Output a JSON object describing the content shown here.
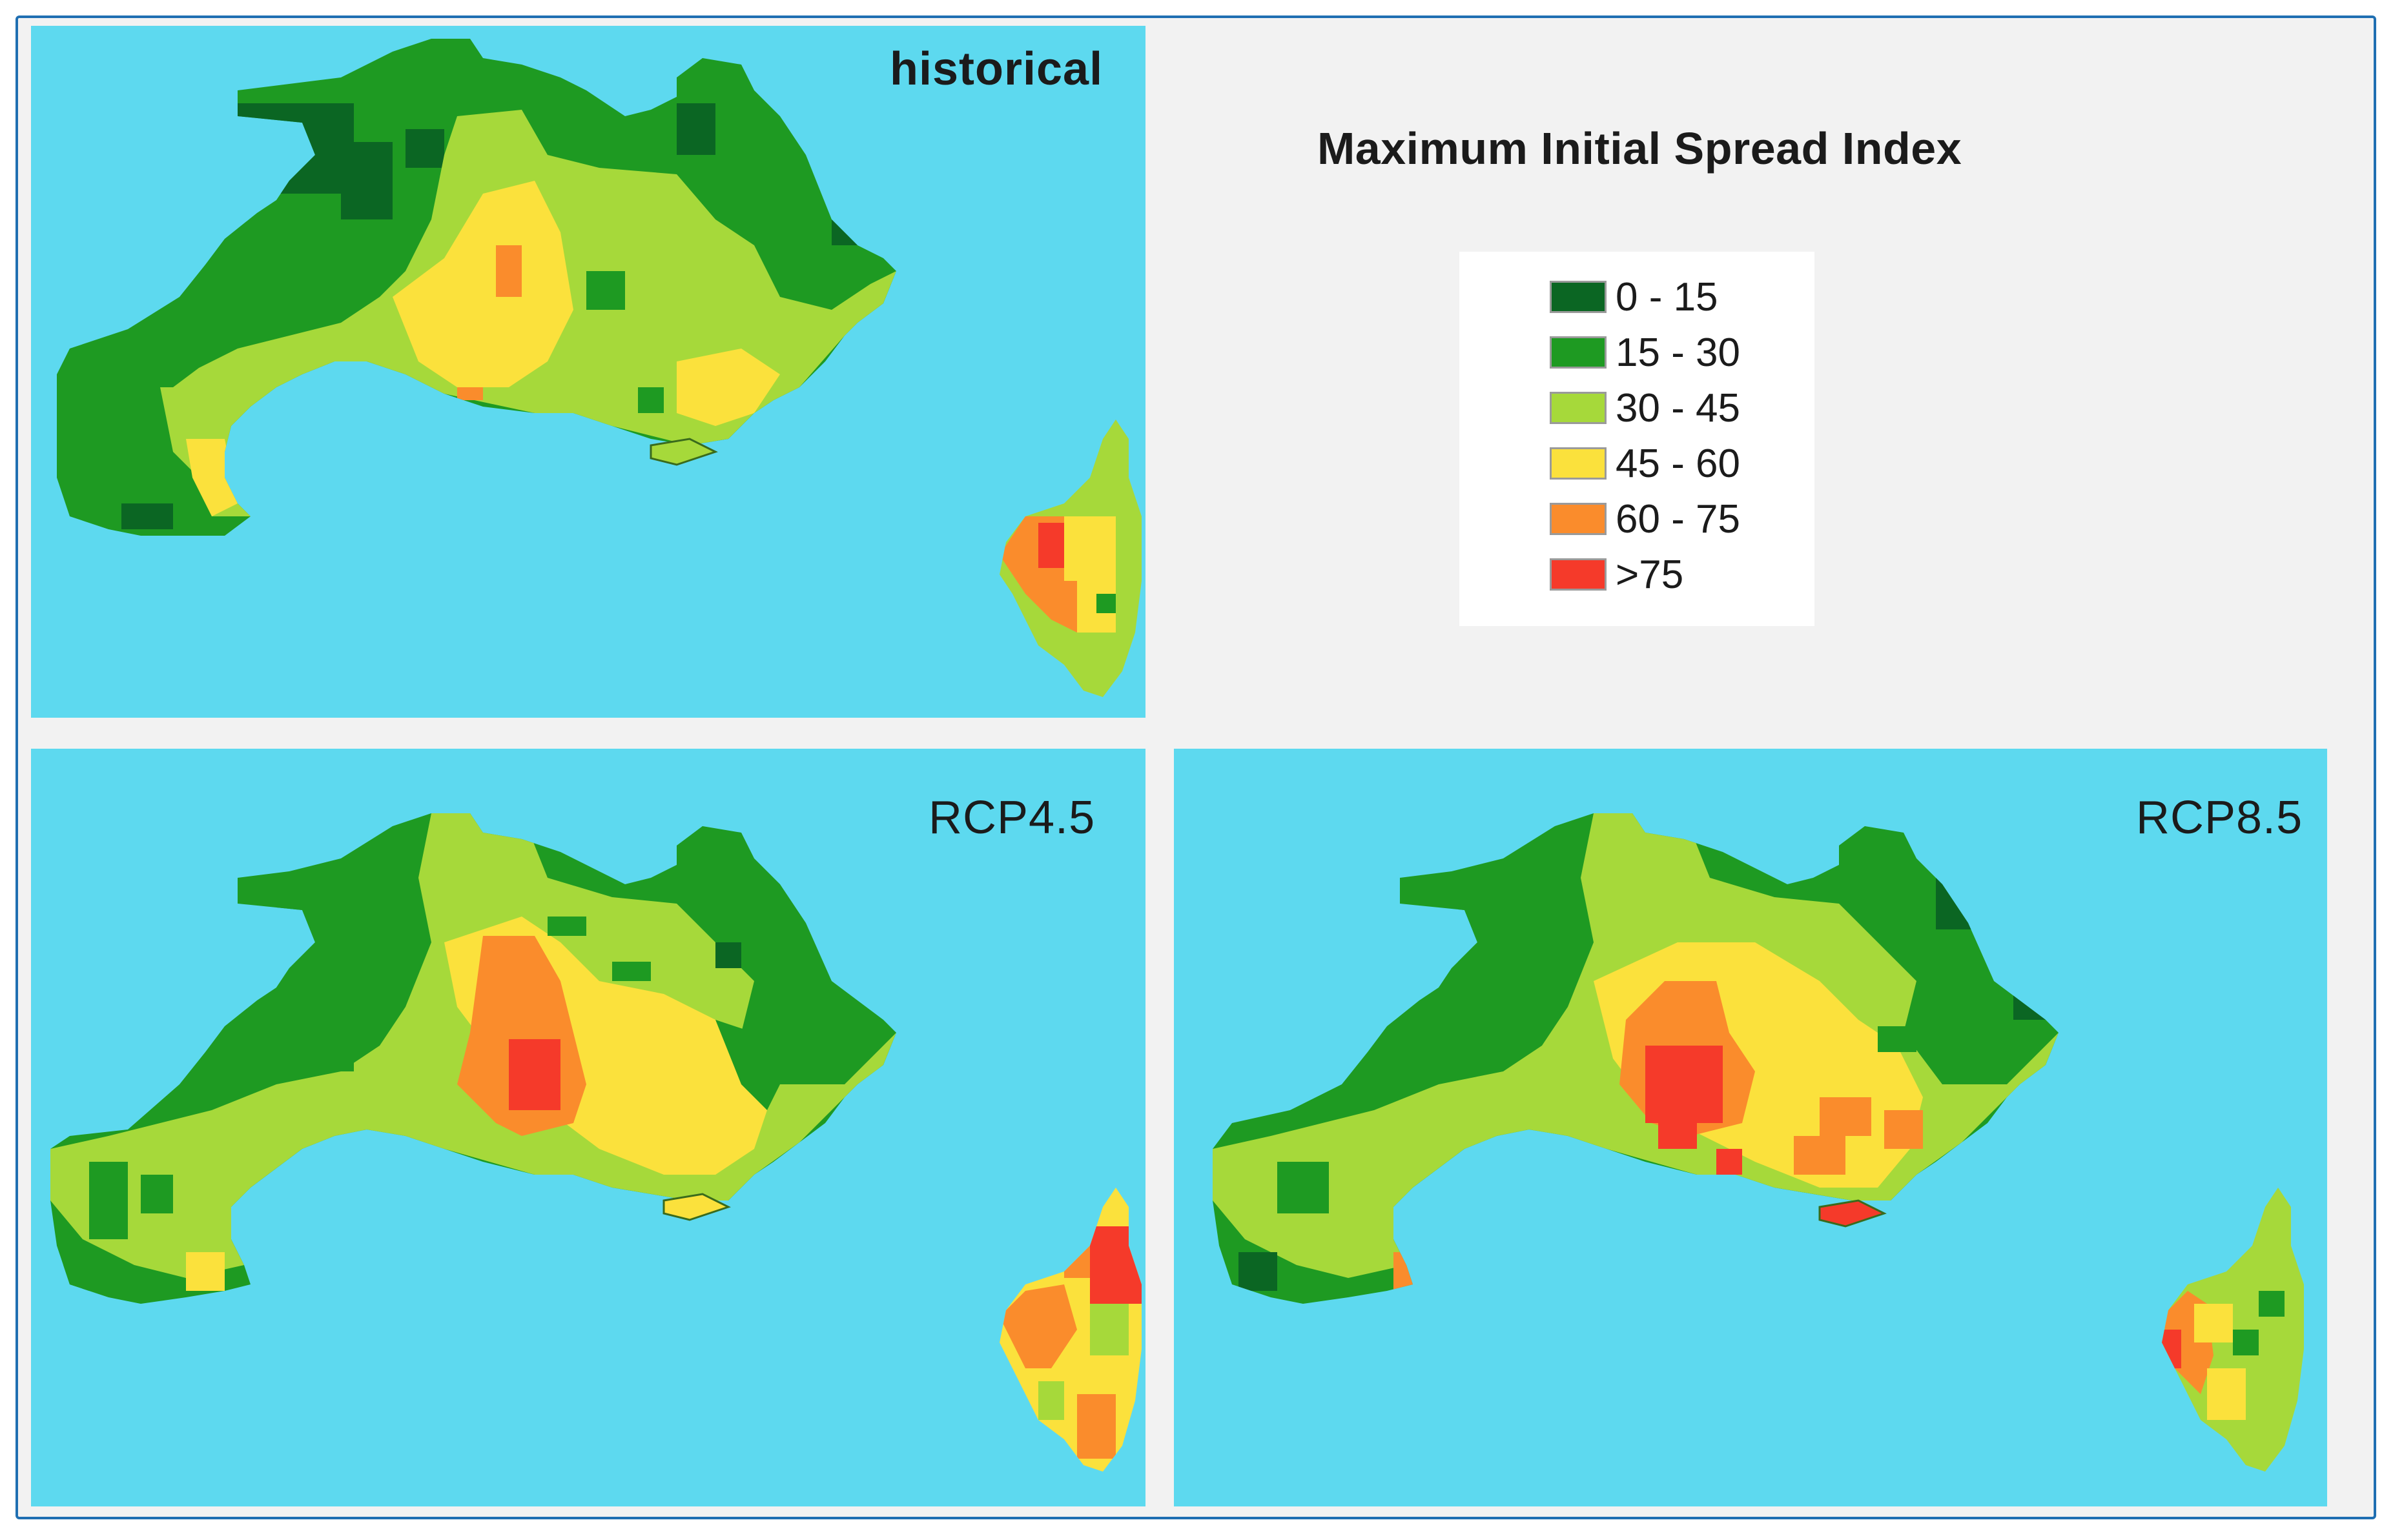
{
  "title": "Maximum Initial Spread Index",
  "colors": {
    "sea": "#5dd9ef",
    "c1": "#0b6623",
    "c2": "#1e9a22",
    "c3": "#a6d93a",
    "c4": "#fbe13c",
    "c5": "#fa8c2c",
    "c6": "#f53a2a"
  },
  "legend": [
    {
      "label": "0 - 15",
      "color": "#0b6623"
    },
    {
      "label": "15 - 30",
      "color": "#1e9a22"
    },
    {
      "label": "30 - 45",
      "color": "#a6d93a"
    },
    {
      "label": "45 - 60",
      "color": "#fbe13c"
    },
    {
      "label": "60 - 75",
      "color": "#fa8c2c"
    },
    {
      "label": ">75",
      "color": "#f53a2a"
    }
  ],
  "panels": {
    "historical": {
      "label": "historical"
    },
    "rcp45": {
      "label": "RCP4.5"
    },
    "rcp85": {
      "label": "RCP8.5"
    }
  }
}
